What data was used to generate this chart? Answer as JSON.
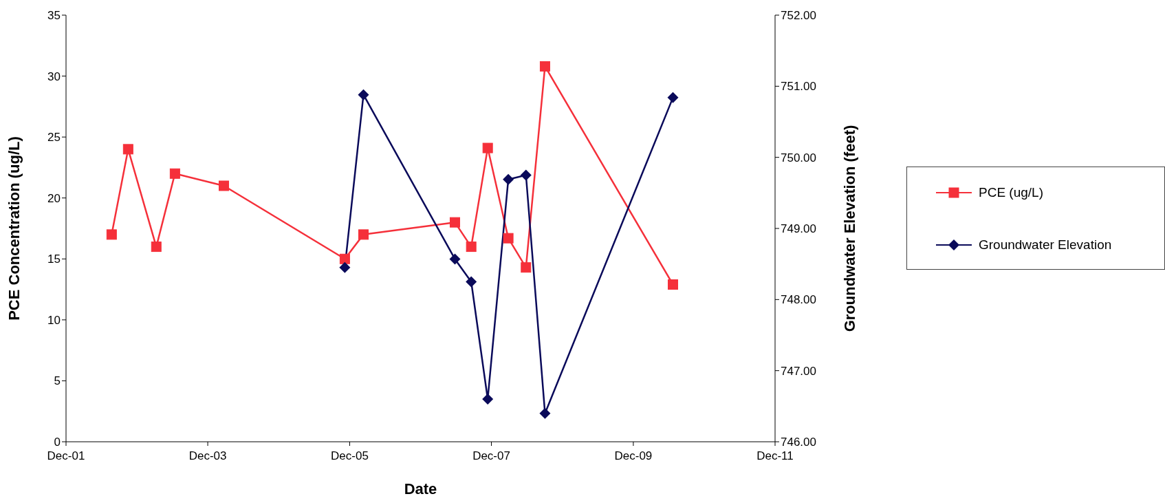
{
  "chart_data": {
    "type": "line",
    "xlabel": "Date",
    "ylabel": "PCE Concentration (ug/L)",
    "y2label": "Groundwater Elevation (feet)",
    "xlim": [
      "2001-12-01",
      "2011-12-01"
    ],
    "xticks": [
      {
        "value": "2001-12-01",
        "label": "Dec-01"
      },
      {
        "value": "2003-12-01",
        "label": "Dec-03"
      },
      {
        "value": "2005-12-01",
        "label": "Dec-05"
      },
      {
        "value": "2007-12-01",
        "label": "Dec-07"
      },
      {
        "value": "2009-12-01",
        "label": "Dec-09"
      },
      {
        "value": "2011-12-01",
        "label": "Dec-11"
      }
    ],
    "ylim": [
      0,
      35
    ],
    "yticks": [
      0,
      5,
      10,
      15,
      20,
      25,
      30,
      35
    ],
    "y2lim": [
      746,
      752
    ],
    "y2ticks": [
      {
        "value": 746,
        "label": "746.00"
      },
      {
        "value": 747,
        "label": "747.00"
      },
      {
        "value": 748,
        "label": "748.00"
      },
      {
        "value": 749,
        "label": "749.00"
      },
      {
        "value": 750,
        "label": "750.00"
      },
      {
        "value": 751,
        "label": "751.00"
      },
      {
        "value": 752,
        "label": "752.00"
      }
    ],
    "legend": "right",
    "line_style": "solid",
    "series": [
      {
        "name": "PCE (ug/L)",
        "color": "#f5303a",
        "marker": "square",
        "x": [
          "2002-07-24",
          "2002-10-17",
          "2003-03-11",
          "2003-06-15",
          "2004-02-22",
          "2005-11-06",
          "2006-02-10",
          "2007-05-27",
          "2007-08-19",
          "2007-11-12",
          "2008-02-26",
          "2008-05-27",
          "2008-09-02",
          "2010-06-23"
        ],
        "values": [
          17,
          24,
          16,
          22,
          21,
          15,
          17,
          18,
          16,
          24.1,
          16.7,
          14.3,
          30.8,
          12.9
        ]
      },
      {
        "name": "Groundwater Elevation",
        "color": "#0a0a5a",
        "marker": "diamond",
        "axis": "y2",
        "x": [
          "2005-11-06",
          "2006-02-10",
          "2007-05-27",
          "2007-08-19",
          "2007-11-12",
          "2008-02-26",
          "2008-05-27",
          "2008-09-02",
          "2010-06-23"
        ],
        "values": [
          748.45,
          750.88,
          748.57,
          748.25,
          746.6,
          749.69,
          749.75,
          746.4,
          750.84
        ]
      }
    ]
  }
}
